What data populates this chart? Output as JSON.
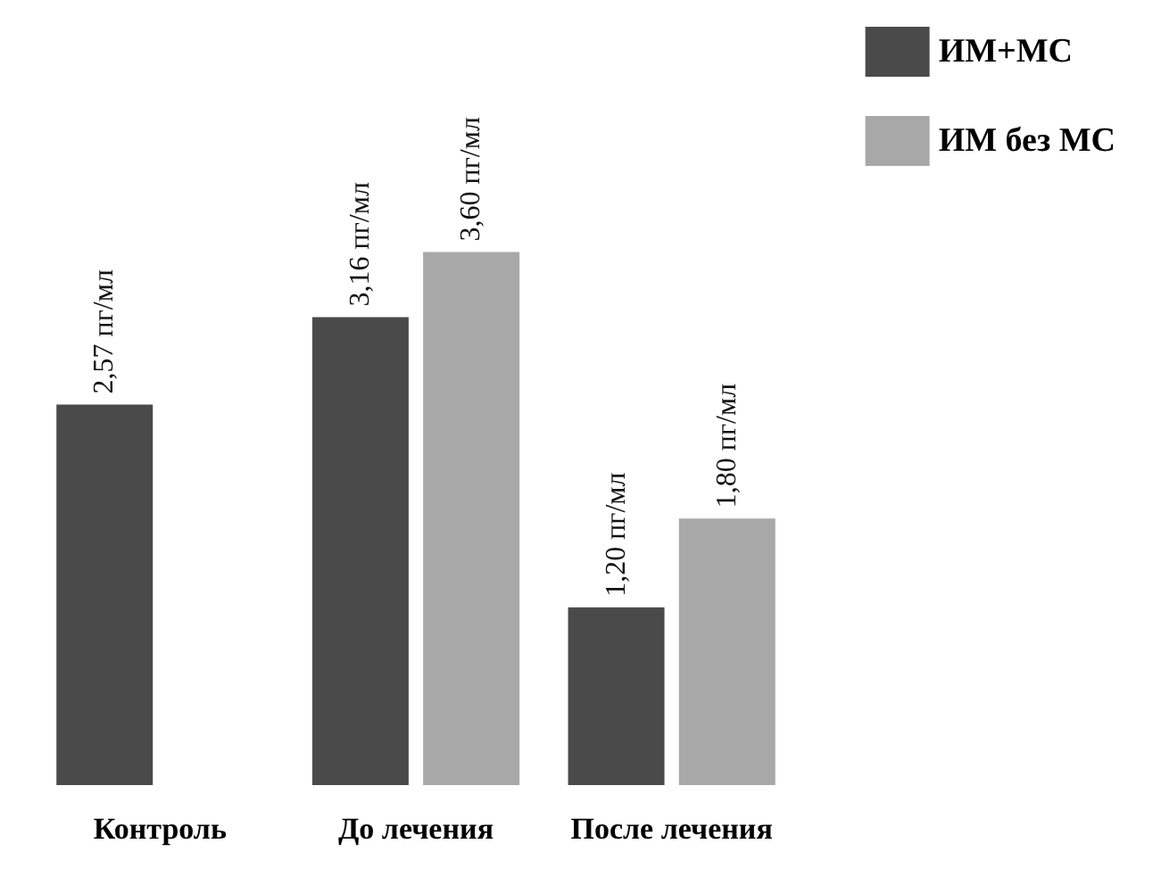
{
  "chart_data": {
    "type": "bar",
    "categories": [
      "Контроль",
      "До лечения",
      "После лечения"
    ],
    "series": [
      {
        "name": "ИМ+МС",
        "color": "#4a4a4a",
        "values": [
          2.57,
          3.16,
          1.2
        ],
        "value_labels": [
          "2,57 пг/мл",
          "3,16 пг/мл",
          "1,20 пг/мл"
        ]
      },
      {
        "name": "ИМ без МС",
        "color": "#a8a8a8",
        "values": [
          null,
          3.6,
          1.8
        ],
        "value_labels": [
          null,
          "3,60 пг/мл",
          "1,80 пг/мл"
        ]
      }
    ],
    "legend": "top right"
  }
}
